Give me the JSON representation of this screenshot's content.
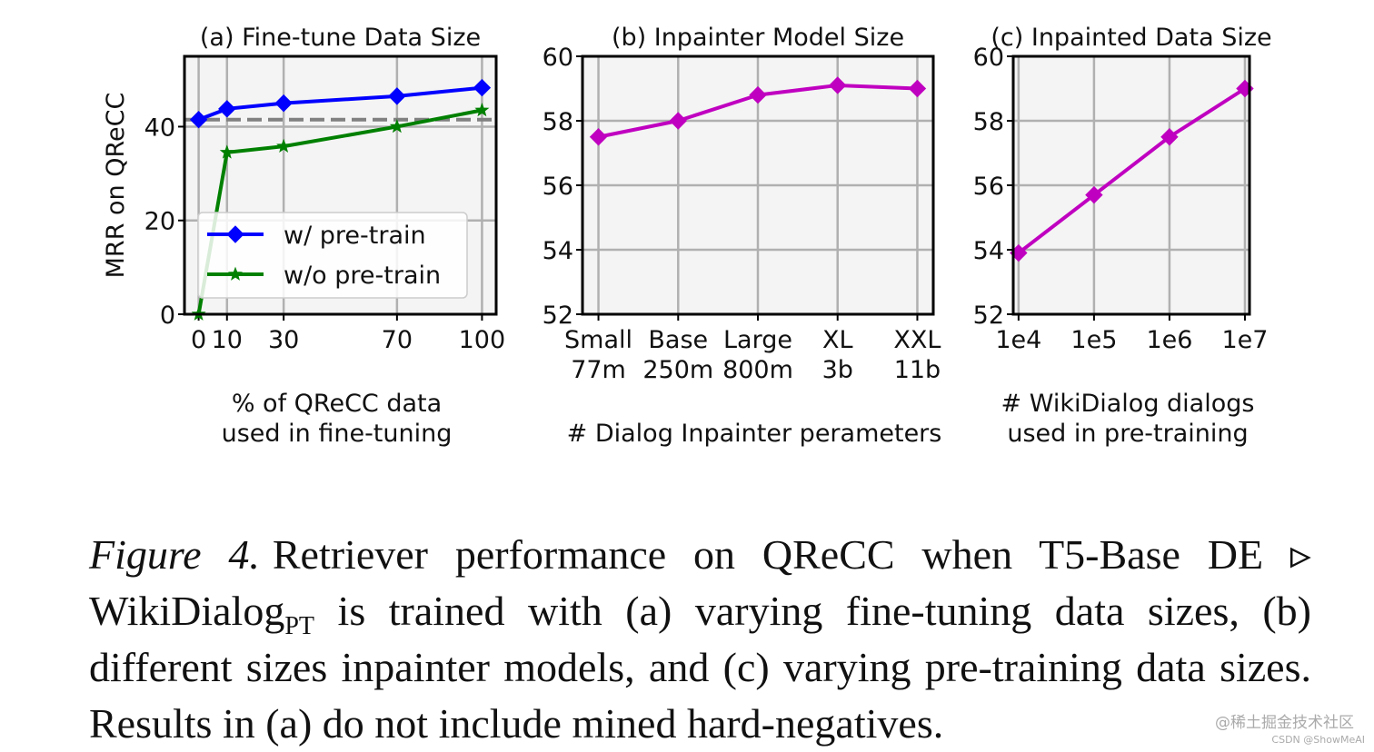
{
  "chart_data": [
    {
      "type": "line",
      "title": "(a) Fine-tune Data Size",
      "xlabel": [
        "% of QReCC data",
        "used in fine-tuning"
      ],
      "ylabel": "MRR on QReCC",
      "x": [
        0,
        10,
        30,
        70,
        100
      ],
      "xticks": [
        "0",
        "10",
        "30",
        "70",
        "100"
      ],
      "yticks": [
        "0",
        "20",
        "40"
      ],
      "xlim": [
        -5,
        105
      ],
      "ylim": [
        0,
        55
      ],
      "grid": true,
      "legend_position": "lower-left",
      "series": [
        {
          "name": "w/ pre-train",
          "values": [
            41.5,
            43.8,
            45.0,
            46.5,
            48.3
          ],
          "color": "#0000ff",
          "marker": "diamond"
        },
        {
          "name": "w/o pre-train",
          "values": [
            0,
            34.5,
            35.8,
            40.0,
            43.5
          ],
          "color": "#008000",
          "marker": "star"
        }
      ],
      "reference_line": {
        "value": 41.5,
        "style": "dashed",
        "color": "#808080"
      }
    },
    {
      "type": "line",
      "title": "(b) Inpainter Model Size",
      "xlabel": [
        "# Dialog Inpainter perameters"
      ],
      "x_categories": [
        {
          "top": "Small",
          "bottom": "77m"
        },
        {
          "top": "Base",
          "bottom": "250m"
        },
        {
          "top": "Large",
          "bottom": "800m"
        },
        {
          "top": "XL",
          "bottom": "3b"
        },
        {
          "top": "XXL",
          "bottom": "11b"
        }
      ],
      "x": [
        0,
        1,
        2,
        3,
        4
      ],
      "xlim": [
        -0.2,
        4.2
      ],
      "ylim": [
        52,
        60
      ],
      "yticks": [
        "52",
        "54",
        "56",
        "58",
        "60"
      ],
      "grid": true,
      "series": [
        {
          "values": [
            57.5,
            58.0,
            58.8,
            59.1,
            59.0
          ],
          "color": "#c000c0",
          "marker": "diamond"
        }
      ]
    },
    {
      "type": "line",
      "title": "(c) Inpainted Data Size",
      "xlabel": [
        "# WikiDialog dialogs",
        "used in pre-training"
      ],
      "x": [
        10000,
        100000,
        1000000,
        10000000
      ],
      "xscale": "log",
      "xticks": [
        "1e4",
        "1e5",
        "1e6",
        "1e7"
      ],
      "xlim": [
        8500,
        11500000
      ],
      "ylim": [
        52,
        60
      ],
      "yticks": [
        "52",
        "54",
        "56",
        "58",
        "60"
      ],
      "grid": true,
      "series": [
        {
          "values": [
            53.9,
            55.7,
            57.5,
            59.0
          ],
          "color": "#c000c0",
          "marker": "diamond"
        }
      ]
    }
  ],
  "caption": {
    "label": "Figure 4.",
    "line1": "Retriever performance on QReCC when T5-Base DE ▹",
    "line2_main": "WikiDialog",
    "line2_sub": "PT",
    "line2_rest": " is trained with (a) varying fine-tuning data sizes, (b)",
    "line3": "different sizes inpainter models, and (c) varying pre-training data",
    "line4": "sizes. Results in (a) do not include mined hard-negatives."
  },
  "watermark": "@稀土掘金技术社区",
  "watermark2": "CSDN @ShowMeAI"
}
